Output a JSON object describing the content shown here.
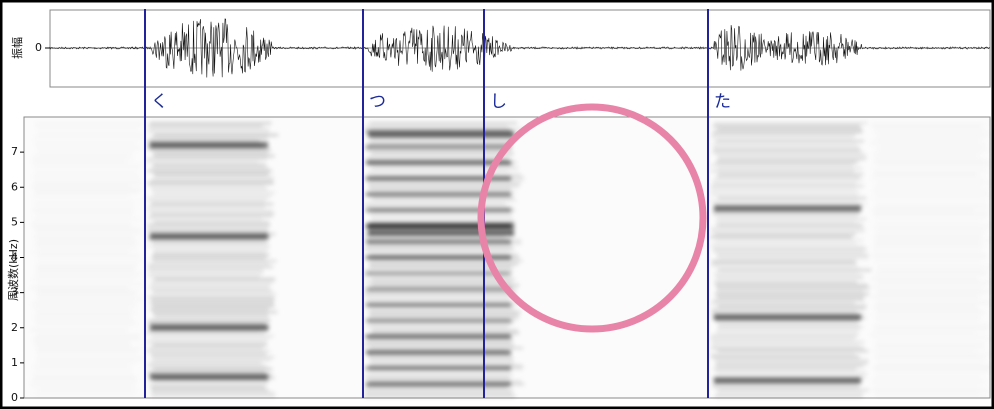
{
  "waveform": {
    "y_label": "振幅",
    "yticks": [
      0
    ]
  },
  "segments": [
    "く",
    "つ",
    "し",
    "た"
  ],
  "spectrogram": {
    "y_label": "周波数(kHz)",
    "ylim": [
      0,
      8
    ],
    "yticks": [
      0,
      1,
      2,
      3,
      4,
      5,
      6,
      7
    ]
  }
}
